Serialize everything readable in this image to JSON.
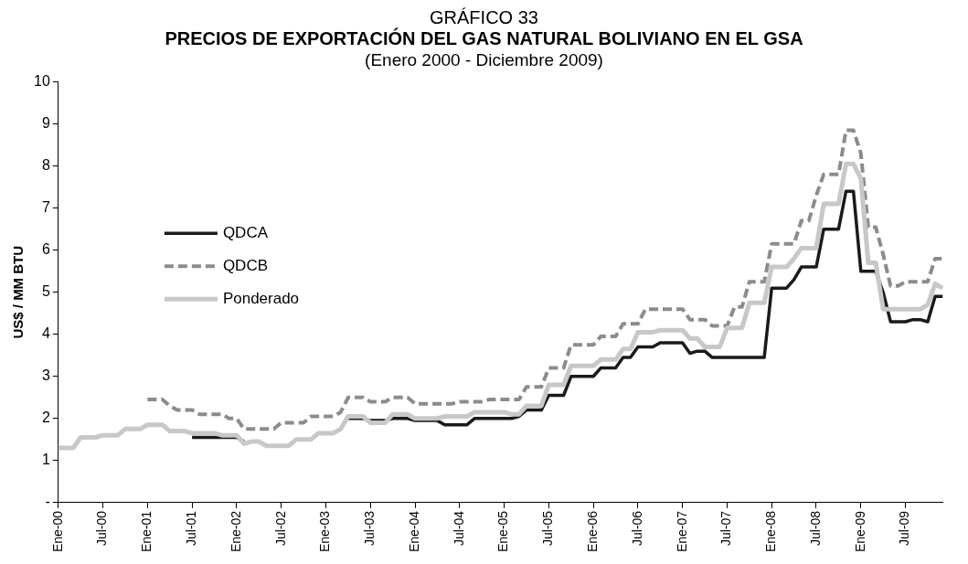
{
  "chart_data": {
    "type": "line",
    "title": "PRECIOS DE EXPORTACIÓN DEL GAS NATURAL BOLIVIANO EN EL GSA",
    "subtitle": "(Enero 2000 - Diciembre 2009)",
    "annotations": [
      "GRÁFICO 33"
    ],
    "ylabel": "US$ / MM BTU",
    "categories": [
      "Ene-00",
      null,
      null,
      null,
      null,
      null,
      "Jul-00",
      null,
      null,
      null,
      null,
      null,
      "Ene-01",
      null,
      null,
      null,
      null,
      null,
      "Jul-01",
      null,
      null,
      null,
      null,
      null,
      "Ene-02",
      null,
      null,
      null,
      null,
      null,
      "Jul-02",
      null,
      null,
      null,
      null,
      null,
      "Ene-03",
      null,
      null,
      null,
      null,
      null,
      "Jul-03",
      null,
      null,
      null,
      null,
      null,
      "Ene-04",
      null,
      null,
      null,
      null,
      null,
      "Jul-04",
      null,
      null,
      null,
      null,
      null,
      "Ene-05",
      null,
      null,
      null,
      null,
      null,
      "Jul-05",
      null,
      null,
      null,
      null,
      null,
      "Ene-06",
      null,
      null,
      null,
      null,
      null,
      "Jul-06",
      null,
      null,
      null,
      null,
      null,
      "Ene-07",
      null,
      null,
      null,
      null,
      null,
      "Jul-07",
      null,
      null,
      null,
      null,
      null,
      "Ene-08",
      null,
      null,
      null,
      null,
      null,
      "Jul-08",
      null,
      null,
      null,
      null,
      null,
      "Ene-09",
      null,
      null,
      null,
      null,
      null,
      "Jul-09",
      null,
      null,
      null,
      null,
      null
    ],
    "series": [
      {
        "name": "QDCA",
        "color": "#1a1a1a",
        "line_style": "solid",
        "values": [
          null,
          null,
          null,
          null,
          null,
          null,
          null,
          null,
          null,
          null,
          null,
          null,
          null,
          null,
          null,
          null,
          null,
          null,
          1.55,
          1.55,
          1.55,
          1.55,
          1.55,
          1.55,
          1.55,
          1.45,
          null,
          null,
          null,
          null,
          null,
          null,
          null,
          null,
          null,
          null,
          null,
          null,
          null,
          2.0,
          2.0,
          2.0,
          1.95,
          1.95,
          1.95,
          2.0,
          2.0,
          2.0,
          1.95,
          1.95,
          1.95,
          1.95,
          1.85,
          1.85,
          1.85,
          1.85,
          2.0,
          2.0,
          2.0,
          2.0,
          2.0,
          2.0,
          2.05,
          2.2,
          2.2,
          2.2,
          2.55,
          2.55,
          2.55,
          3.0,
          3.0,
          3.0,
          3.0,
          3.2,
          3.2,
          3.2,
          3.45,
          3.45,
          3.7,
          3.7,
          3.7,
          3.8,
          3.8,
          3.8,
          3.8,
          3.55,
          3.6,
          3.6,
          3.45,
          3.45,
          3.45,
          3.45,
          3.45,
          3.45,
          3.45,
          3.45,
          5.1,
          5.1,
          5.1,
          5.3,
          5.6,
          5.6,
          5.6,
          6.5,
          6.5,
          6.5,
          7.4,
          7.4,
          5.5,
          5.5,
          5.5,
          5.0,
          4.3,
          4.3,
          4.3,
          4.35,
          4.35,
          4.3,
          4.9,
          4.9
        ]
      },
      {
        "name": "QDCB",
        "color": "#8c8c8c",
        "line_style": "dashed",
        "values": [
          null,
          null,
          null,
          null,
          null,
          null,
          null,
          null,
          null,
          null,
          null,
          null,
          2.45,
          2.45,
          2.45,
          2.3,
          2.2,
          2.2,
          2.2,
          2.1,
          2.1,
          2.1,
          2.1,
          2.0,
          2.0,
          1.75,
          1.75,
          1.75,
          1.75,
          1.75,
          1.9,
          1.9,
          1.9,
          1.9,
          2.05,
          2.05,
          2.05,
          2.05,
          2.15,
          2.5,
          2.5,
          2.5,
          2.4,
          2.4,
          2.4,
          2.5,
          2.5,
          2.5,
          2.35,
          2.35,
          2.35,
          2.35,
          2.35,
          2.35,
          2.4,
          2.4,
          2.4,
          2.4,
          2.45,
          2.45,
          2.45,
          2.45,
          2.45,
          2.75,
          2.75,
          2.75,
          3.2,
          3.2,
          3.2,
          3.75,
          3.75,
          3.75,
          3.75,
          3.95,
          3.95,
          3.95,
          4.25,
          4.25,
          4.25,
          4.6,
          4.6,
          4.6,
          4.6,
          4.6,
          4.6,
          4.35,
          4.35,
          4.35,
          4.2,
          4.2,
          4.2,
          4.65,
          4.65,
          5.25,
          5.25,
          5.25,
          6.15,
          6.15,
          6.15,
          6.15,
          6.7,
          6.7,
          7.3,
          7.8,
          7.8,
          7.8,
          8.85,
          8.85,
          8.3,
          6.55,
          6.55,
          5.9,
          5.15,
          5.15,
          5.25,
          5.25,
          5.25,
          5.25,
          5.8,
          5.8
        ]
      },
      {
        "name": "Ponderado",
        "color": "#c8c8c8",
        "line_style": "solid",
        "values": [
          1.3,
          1.3,
          1.3,
          1.55,
          1.55,
          1.55,
          1.6,
          1.6,
          1.6,
          1.75,
          1.75,
          1.75,
          1.85,
          1.85,
          1.85,
          1.7,
          1.7,
          1.7,
          1.65,
          1.65,
          1.65,
          1.65,
          1.6,
          1.6,
          1.6,
          1.4,
          1.45,
          1.45,
          1.35,
          1.35,
          1.35,
          1.35,
          1.5,
          1.5,
          1.5,
          1.65,
          1.65,
          1.65,
          1.75,
          2.05,
          2.05,
          2.05,
          1.9,
          1.9,
          1.9,
          2.1,
          2.1,
          2.1,
          2.0,
          2.0,
          2.0,
          2.0,
          2.05,
          2.05,
          2.05,
          2.05,
          2.15,
          2.15,
          2.15,
          2.15,
          2.15,
          2.1,
          2.1,
          2.3,
          2.3,
          2.3,
          2.8,
          2.8,
          2.8,
          3.25,
          3.25,
          3.25,
          3.25,
          3.4,
          3.4,
          3.4,
          3.65,
          3.65,
          4.05,
          4.05,
          4.05,
          4.1,
          4.1,
          4.1,
          4.1,
          3.9,
          3.9,
          3.7,
          3.7,
          3.7,
          4.15,
          4.15,
          4.15,
          4.75,
          4.75,
          4.75,
          5.6,
          5.6,
          5.6,
          5.8,
          6.05,
          6.05,
          6.05,
          7.1,
          7.1,
          7.1,
          8.05,
          8.05,
          7.7,
          5.7,
          5.7,
          4.6,
          4.6,
          4.6,
          4.6,
          4.6,
          4.6,
          4.7,
          5.2,
          5.1
        ]
      }
    ],
    "ylim": [
      0,
      10
    ],
    "yticks": [
      {
        "value": 0,
        "label": "-"
      },
      1,
      2,
      3,
      4,
      5,
      6,
      7,
      8,
      9,
      10
    ],
    "grid": false,
    "legend": "left",
    "marker": "none"
  }
}
